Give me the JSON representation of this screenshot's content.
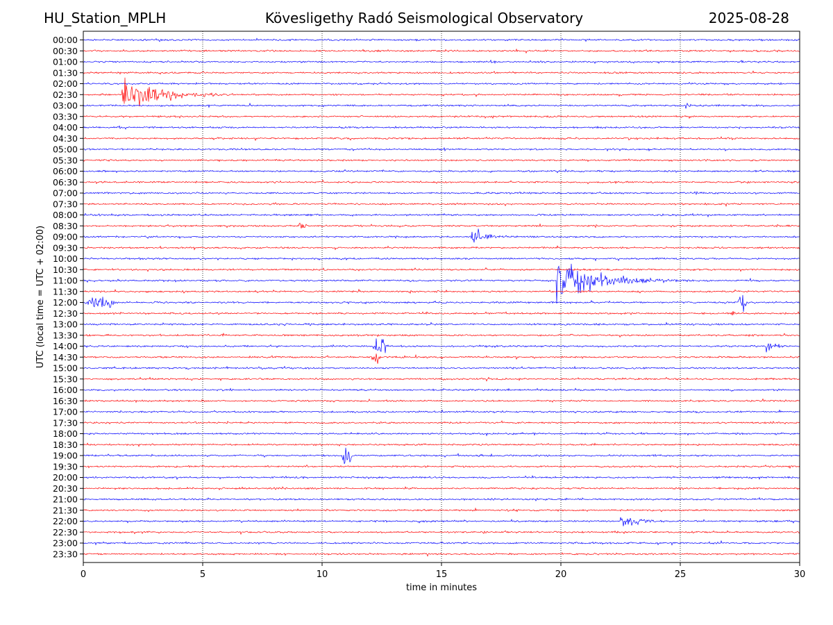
{
  "header": {
    "station": "HU_Station_MPLH",
    "title": "Kövesligethy Radó Seismological Observatory",
    "date": "2025-08-28"
  },
  "chart_data": {
    "type": "line",
    "title": "Kövesligethy Radó Seismological Observatory",
    "xlabel": "time in minutes",
    "ylabel": "UTC (local time = UTC + 02:00)",
    "xlim": [
      0,
      30
    ],
    "xticks": [
      0,
      5,
      10,
      15,
      20,
      25,
      30
    ],
    "vertical_grid": "dotted",
    "colors": [
      "#0000ff",
      "#ff0000"
    ],
    "rows": [
      "00:00",
      "00:30",
      "01:00",
      "01:30",
      "02:00",
      "02:30",
      "03:00",
      "03:30",
      "04:00",
      "04:30",
      "05:00",
      "05:30",
      "06:00",
      "06:30",
      "07:00",
      "07:30",
      "08:00",
      "08:30",
      "09:00",
      "09:30",
      "10:00",
      "10:30",
      "11:00",
      "11:30",
      "12:00",
      "12:30",
      "13:00",
      "13:30",
      "14:00",
      "14:30",
      "15:00",
      "15:30",
      "16:00",
      "16:30",
      "17:00",
      "17:30",
      "18:00",
      "18:30",
      "19:00",
      "19:30",
      "20:00",
      "20:30",
      "21:00",
      "21:30",
      "22:00",
      "22:30",
      "23:00",
      "23:30"
    ],
    "events": [
      {
        "row": "02:30",
        "start": 1.6,
        "end": 7.0,
        "amplitude": 32,
        "shape": "decay"
      },
      {
        "row": "02:30",
        "start": 3.45,
        "end": 5.0,
        "amplitude": 18,
        "shape": "decay"
      },
      {
        "row": "03:00",
        "start": 25.2,
        "end": 26.0,
        "amplitude": 8,
        "shape": "decay"
      },
      {
        "row": "08:30",
        "start": 9.0,
        "end": 10.0,
        "amplitude": 10,
        "shape": "decay"
      },
      {
        "row": "09:00",
        "start": 16.2,
        "end": 16.7,
        "amplitude": 28,
        "shape": "burst"
      },
      {
        "row": "09:00",
        "start": 16.8,
        "end": 18.2,
        "amplitude": 10,
        "shape": "decay"
      },
      {
        "row": "11:00",
        "start": 19.8,
        "end": 25.5,
        "amplitude": 46,
        "shape": "decay"
      },
      {
        "row": "11:00",
        "start": 20.5,
        "end": 23.0,
        "amplitude": 30,
        "shape": "decay"
      },
      {
        "row": "11:30",
        "start": 29.9,
        "end": 30.0,
        "amplitude": 12,
        "shape": "burst"
      },
      {
        "row": "12:00",
        "start": 0.0,
        "end": 1.5,
        "amplitude": 14,
        "shape": "burst"
      },
      {
        "row": "12:00",
        "start": 27.4,
        "end": 27.8,
        "amplitude": 22,
        "shape": "burst"
      },
      {
        "row": "12:30",
        "start": 27.0,
        "end": 27.5,
        "amplitude": 6,
        "shape": "burst"
      },
      {
        "row": "14:00",
        "start": 12.1,
        "end": 12.8,
        "amplitude": 22,
        "shape": "burst"
      },
      {
        "row": "14:00",
        "start": 28.6,
        "end": 30.0,
        "amplitude": 12,
        "shape": "decay"
      },
      {
        "row": "14:30",
        "start": 12.0,
        "end": 12.5,
        "amplitude": 12,
        "shape": "burst"
      },
      {
        "row": "19:00",
        "start": 10.8,
        "end": 11.3,
        "amplitude": 30,
        "shape": "burst"
      },
      {
        "row": "22:00",
        "start": 22.5,
        "end": 24.8,
        "amplitude": 18,
        "shape": "decay"
      }
    ]
  }
}
